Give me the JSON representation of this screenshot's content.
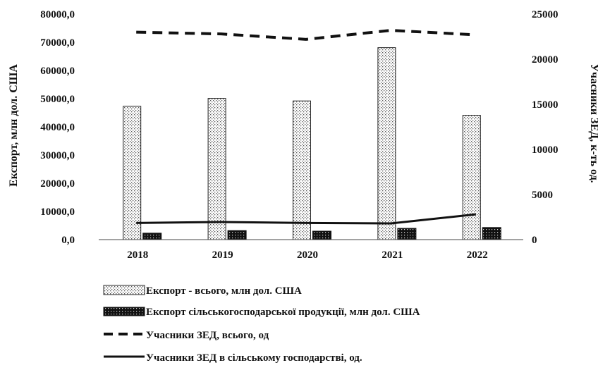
{
  "chart_data": {
    "type": "bar",
    "categories": [
      "2018",
      "2019",
      "2020",
      "2021",
      "2022"
    ],
    "ylabel_left": "Експорт, млн дол. США",
    "ylabel_right": "Учасники ЗЕД, к-ть од.",
    "ylim_left": [
      0,
      80000
    ],
    "ylim_right": [
      0,
      25000
    ],
    "left_ticks": [
      "0,0",
      "10000,0",
      "20000,0",
      "30000,0",
      "40000,0",
      "50000,0",
      "60000,0",
      "70000,0",
      "80000,0"
    ],
    "right_ticks": [
      "0",
      "5000",
      "10000",
      "15000",
      "20000",
      "25000"
    ],
    "grid": false,
    "legend_position": "bottom",
    "series": [
      {
        "name": "Експорт - всього, млн дол. США",
        "kind": "bar",
        "axis": "left",
        "pattern": "dotted-light",
        "values": [
          47300,
          50100,
          49200,
          68100,
          44100
        ]
      },
      {
        "name": "Експорт сільськогосподарської продукції, млн дол. США",
        "kind": "bar",
        "axis": "left",
        "pattern": "dotted-dark",
        "values": [
          2300,
          3200,
          3000,
          4000,
          4300
        ]
      },
      {
        "name": "Учасники ЗЕД, всього, од",
        "kind": "line",
        "axis": "right",
        "style": "dashed",
        "values": [
          23000,
          22800,
          22200,
          23200,
          22700
        ]
      },
      {
        "name": "Учасники ЗЕД в сільському господарстві, од.",
        "kind": "line",
        "axis": "right",
        "style": "solid",
        "values": [
          1850,
          1950,
          1850,
          1800,
          2800
        ]
      }
    ]
  }
}
